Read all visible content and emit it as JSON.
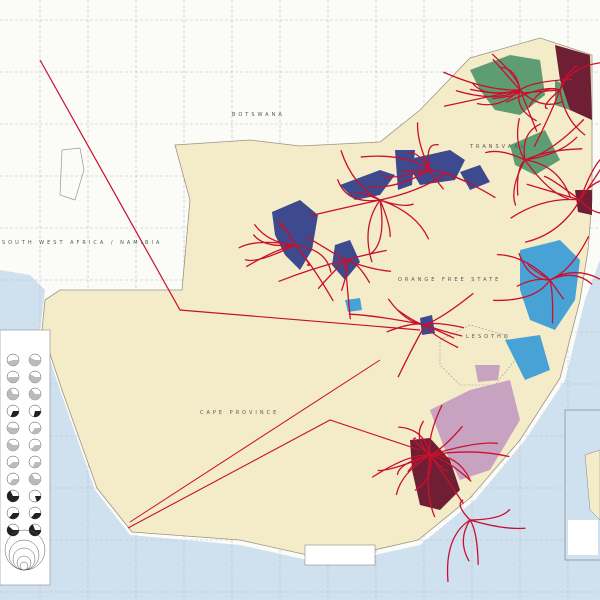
{
  "map": {
    "labels": {
      "botswana": "BOTSWANA",
      "namibia": "SOUTH WEST AFRICA / NAMIBIA",
      "transvaal": "TRANSVAAL",
      "ofs": "ORANGE FREE STATE",
      "lesotho": "LESOTHO",
      "cape": "CAPE PROVINCE"
    },
    "colors": {
      "ocean": "#cfe0ee",
      "foreign_land": "#fbfbf8",
      "south_africa": "#f4ecc9",
      "homeland_blue": "#3d4a8e",
      "homeland_green": "#5e9c72",
      "homeland_maroon": "#6e1f33",
      "homeland_lightblue": "#48a2d6",
      "homeland_purple": "#c8a2c1",
      "flow_lines": "#c8102e"
    }
  }
}
